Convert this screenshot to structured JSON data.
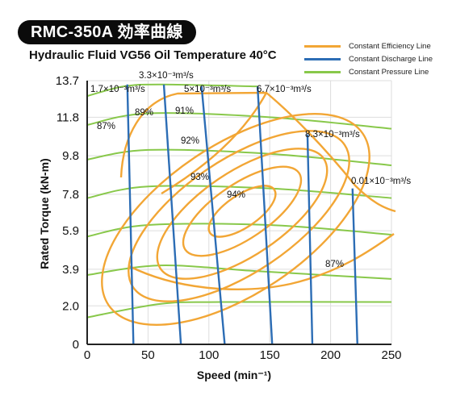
{
  "title": "RMC-350A 効率曲線",
  "subtitle": "Hydraulic Fluid VG56 Oil Temperature 40°C",
  "legend": [
    {
      "label": "Constant Efficiency Line",
      "color": "#f2a635"
    },
    {
      "label": "Constant Discharge Line",
      "color": "#2c6db5"
    },
    {
      "label": "Constant Pressure Line",
      "color": "#88c84a"
    }
  ],
  "chart_data": {
    "type": "line",
    "xlabel": "Speed (min⁻¹)",
    "ylabel": "Rated Torque (kN-m)",
    "xlim": [
      0,
      250
    ],
    "ylim": [
      0,
      13.7
    ],
    "x_ticks": [
      0,
      50,
      100,
      150,
      200,
      250
    ],
    "y_ticks": [
      0,
      2.0,
      3.9,
      5.9,
      7.8,
      9.8,
      11.8,
      13.7
    ],
    "y_tick_labels": [
      "0",
      "2.0",
      "3.9",
      "5.9",
      "7.8",
      "9.8",
      "11.8",
      "13.7"
    ],
    "grid": true,
    "constant_pressure_lines": [
      {
        "points": [
          [
            0,
            1.4
          ],
          [
            60,
            2.1
          ],
          [
            110,
            2.2
          ],
          [
            250,
            2.2
          ]
        ]
      },
      {
        "points": [
          [
            0,
            3.6
          ],
          [
            60,
            4.1
          ],
          [
            140,
            3.8
          ],
          [
            250,
            3.4
          ]
        ]
      },
      {
        "points": [
          [
            0,
            5.6
          ],
          [
            50,
            6.2
          ],
          [
            150,
            6.2
          ],
          [
            250,
            5.7
          ]
        ]
      },
      {
        "points": [
          [
            0,
            7.6
          ],
          [
            50,
            8.2
          ],
          [
            150,
            8.1
          ],
          [
            250,
            7.6
          ]
        ]
      },
      {
        "points": [
          [
            0,
            9.6
          ],
          [
            50,
            10.1
          ],
          [
            150,
            9.9
          ],
          [
            250,
            9.3
          ]
        ]
      },
      {
        "points": [
          [
            0,
            11.4
          ],
          [
            50,
            12.0
          ],
          [
            150,
            11.8
          ],
          [
            250,
            11.2
          ]
        ]
      },
      {
        "points": [
          [
            0,
            12.9
          ],
          [
            30,
            13.4
          ],
          [
            60,
            13.5
          ],
          [
            140,
            13.4
          ]
        ]
      }
    ],
    "constant_discharge_lines": [
      {
        "label": "1.7×10⁻³m³/s",
        "points": [
          [
            33,
            13.5
          ],
          [
            38,
            0
          ]
        ]
      },
      {
        "label": "3.3×10⁻³m³/s",
        "points": [
          [
            63,
            13.5
          ],
          [
            77,
            0
          ]
        ]
      },
      {
        "label": "5×10⁻³m³/s",
        "points": [
          [
            94,
            13.4
          ],
          [
            113,
            0
          ]
        ]
      },
      {
        "label": "6.7×10⁻³m³/s",
        "points": [
          [
            140,
            13.4
          ],
          [
            152,
            0
          ]
        ]
      },
      {
        "label": "8.3×10⁻³m³/s",
        "points": [
          [
            181,
            10.9
          ],
          [
            185,
            0
          ]
        ]
      },
      {
        "label": "0.01×10⁻³m³/s",
        "points": [
          [
            218,
            8.1
          ],
          [
            222,
            0
          ]
        ]
      }
    ],
    "constant_efficiency_lines": [
      {
        "label": "87%",
        "outer": true
      },
      {
        "label": "89%"
      },
      {
        "label": "91%"
      },
      {
        "label": "92%"
      },
      {
        "label": "93%"
      },
      {
        "label": "94%"
      },
      {
        "label": "87%"
      }
    ]
  }
}
